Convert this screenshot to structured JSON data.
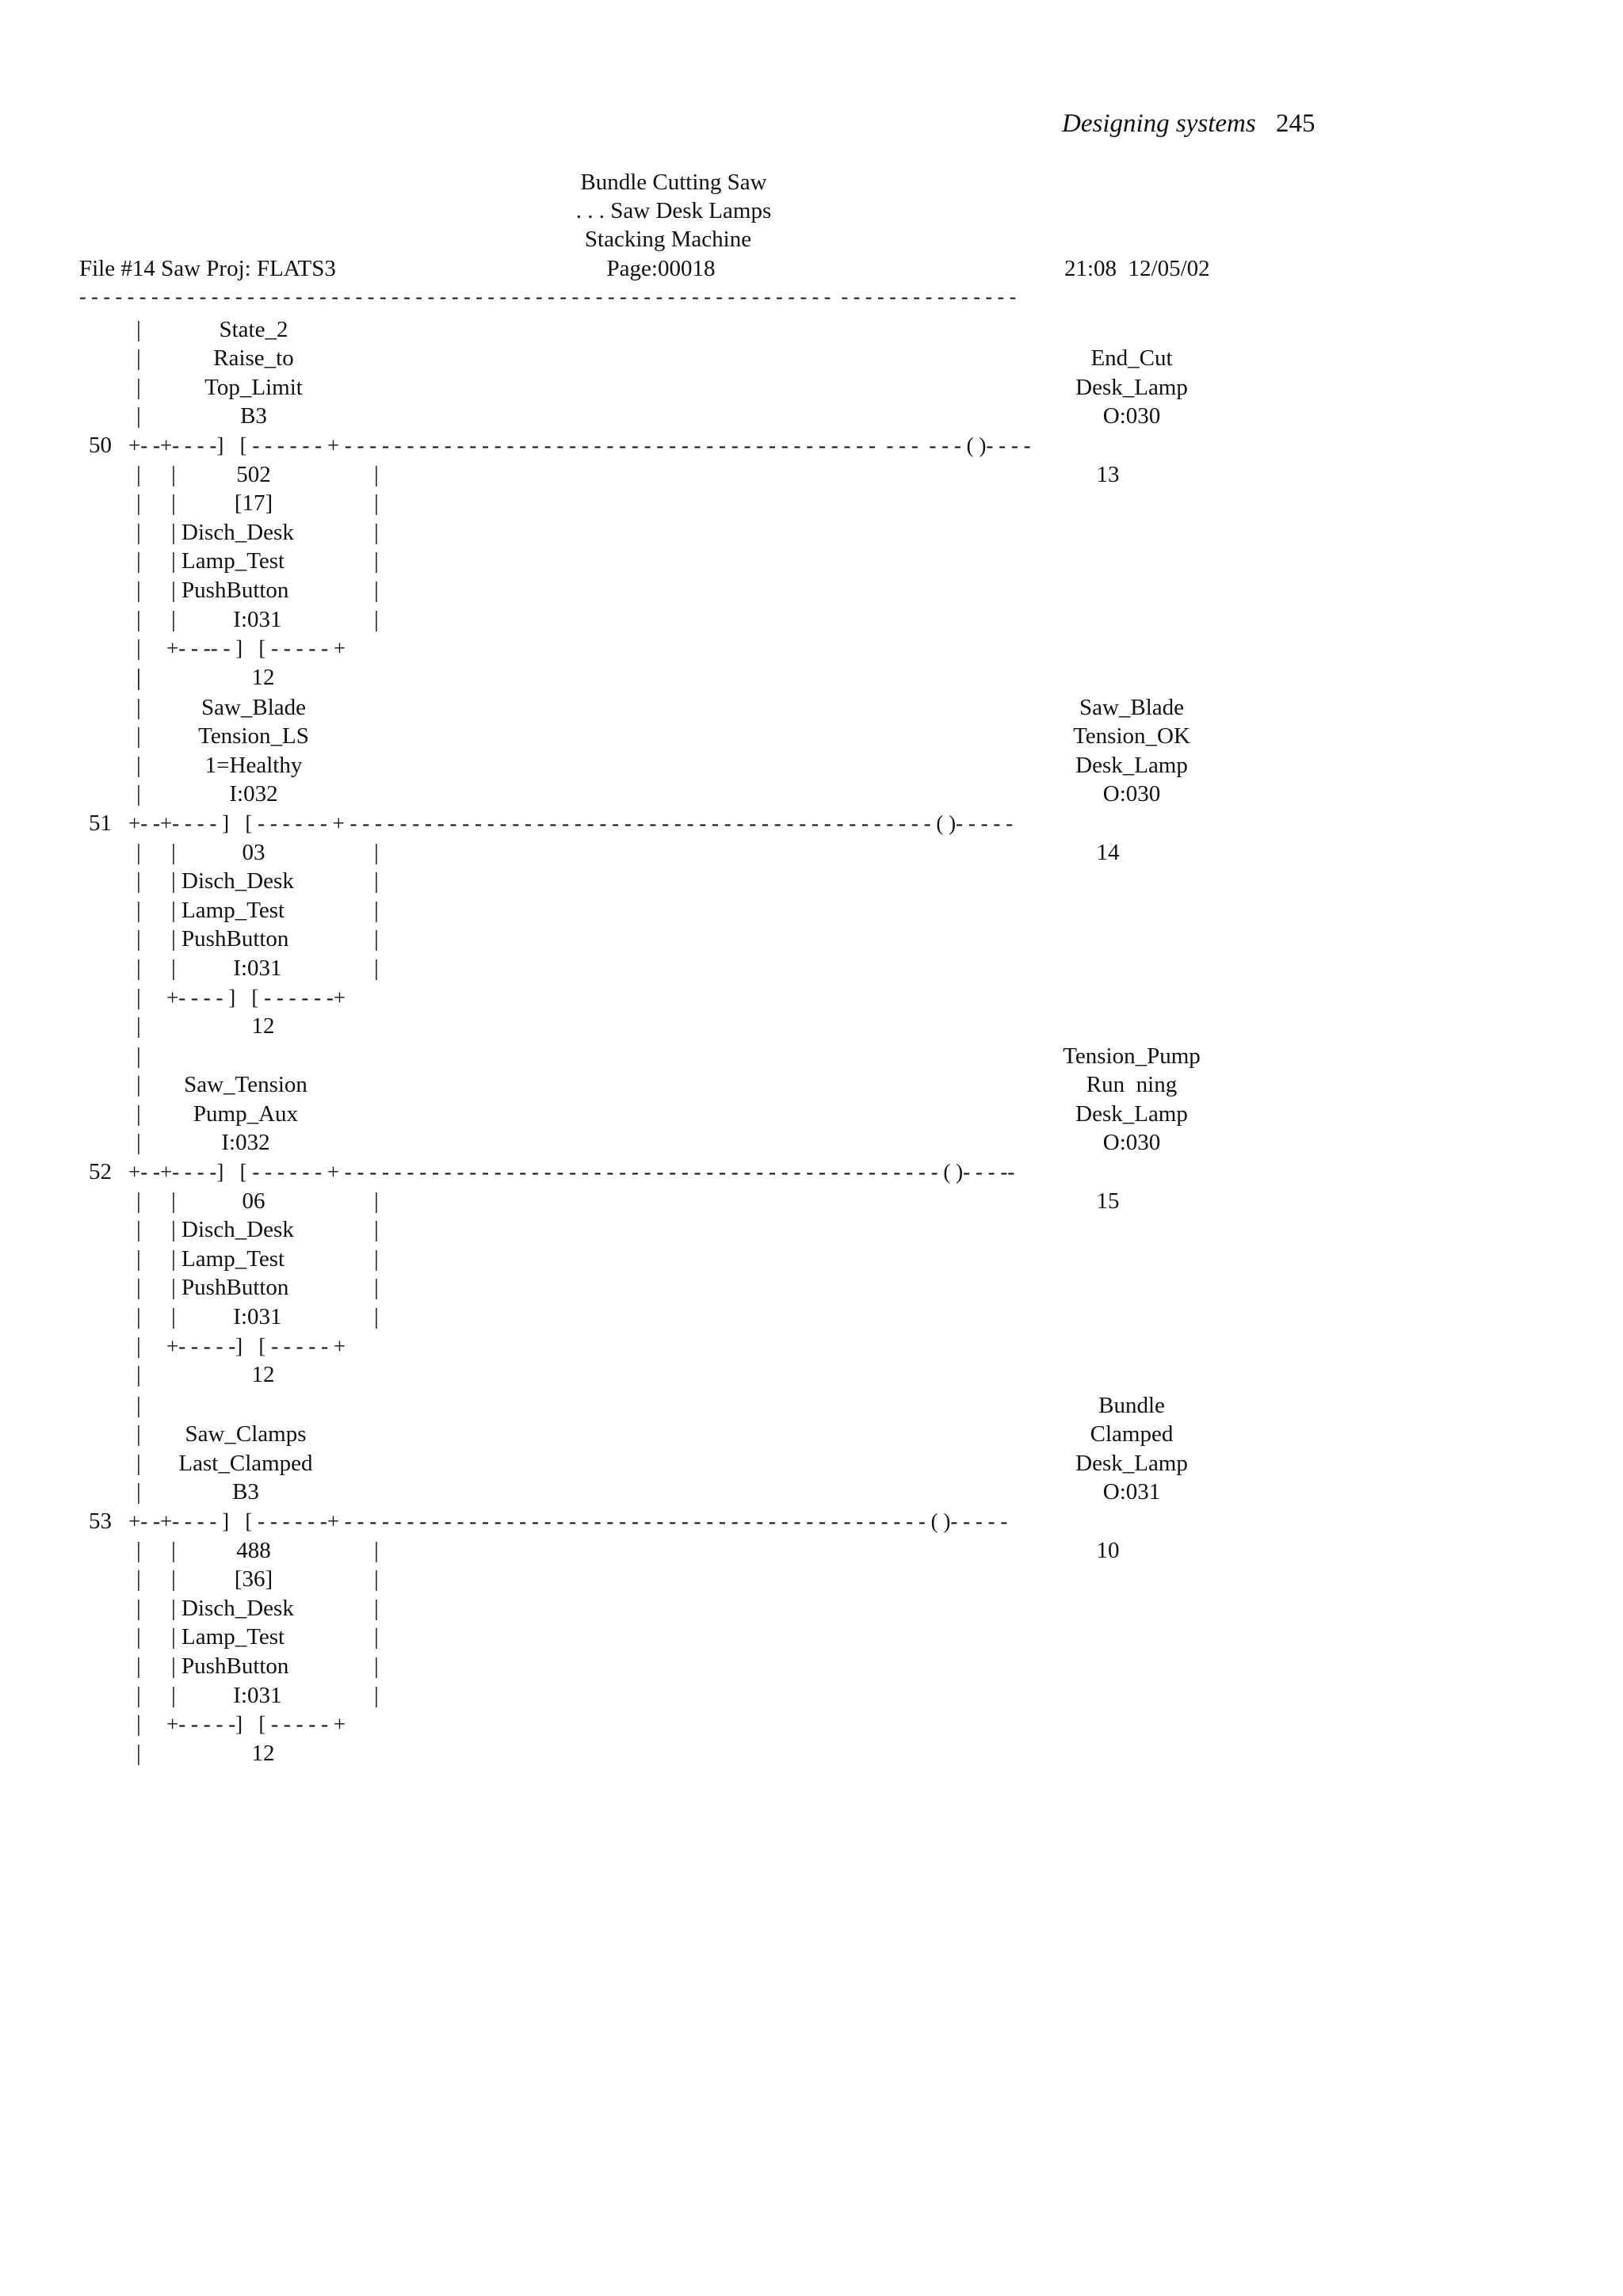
{
  "running_header": {
    "title": "Designing systems",
    "page_number": "245"
  },
  "listing_header": {
    "line1": "Bundle Cutting Saw",
    "line2": ". . . Saw Desk Lamps",
    "line3": "Stacking Machine",
    "file_info": "File #14 Saw Proj: FLATS3",
    "page": "Page:00018",
    "timestamp": "21:08  12/05/02",
    "separator": "- - - - - - - - - - - - - - - - - - - - - - - - - - - - - - - - - - - - - - - - - - - - - - - - - - - - - - - - - - - - - - -  - - - - - - - - - - - - - - -"
  },
  "rungs": [
    {
      "number": "50",
      "line": "+- -+- - - -]   [ - - - - - - + - - - - - - - - - - - - - - - - - - - - - - - - - - - - - - - - - - - - - - - - - - -  - - -  - - - ( )- - - -",
      "contact1_labels": [
        "State_2",
        "Raise_to",
        "Top_Limit",
        "B3"
      ],
      "contact1_bits": [
        "502",
        "[17]"
      ],
      "branch_labels": [
        "| Disch_Desk",
        "| Lamp_Test",
        "| PushButton",
        "|          I:031"
      ],
      "branch_line": "+- - -- - ]   [ - - - - - +",
      "branch_bit": "12",
      "coil_labels": [
        "End_Cut",
        "Desk_Lamp",
        "O:030"
      ],
      "coil_bit": "13"
    },
    {
      "number": "51",
      "line": "+- -+- - - - ]   [ - - - - - - + - - - - - - - - - - - - - - - - - - - - - - - - - - - - - - - - - - - - - - - - - - - - - - - ( )- - - - -",
      "contact1_labels": [
        "Saw_Blade",
        "Tension_LS",
        "1=Healthy",
        "I:032"
      ],
      "contact1_bits": [
        "03"
      ],
      "branch_labels": [
        "| Disch_Desk",
        "| Lamp_Test",
        "| PushButton",
        "|          I:031"
      ],
      "branch_line": "+- - - - ]   [ - - - - - -+",
      "branch_bit": "12",
      "coil_labels": [
        "Saw_Blade",
        "Tension_OK",
        "Desk_Lamp",
        "O:030"
      ],
      "coil_bit": "14"
    },
    {
      "number": "52",
      "line": "+- -+- - - -]   [ - - - - - - + - - - - - - - - - - - - - - - - - - - - - - - - - - - - - - - - - - - - - - - - - - - - - - - - ( )- - - --",
      "contact1_labels": [
        "Saw_Tension",
        "Pump_Aux",
        "I:032"
      ],
      "contact1_bits": [
        "06"
      ],
      "branch_labels": [
        "| Disch_Desk",
        "| Lamp_Test",
        "| PushButton",
        "|          I:031"
      ],
      "branch_line": "+- - - - -]   [ - - - - - +",
      "branch_bit": "12",
      "coil_labels": [
        "Tension_Pump",
        "Run  ning",
        "Desk_Lamp",
        "O:030"
      ],
      "coil_bit": "15"
    },
    {
      "number": "53",
      "line": "+- -+- - - - ]   [ - - - - - -+ - - - - - - - - - - - - - - - - - - - - - - - - - - - - - - - - - - - - - - - - - - - - - - - ( )- - - - -",
      "contact1_labels": [
        "Saw_Clamps",
        "Last_Clamped",
        "B3"
      ],
      "contact1_bits": [
        "488",
        "[36]"
      ],
      "branch_labels": [
        "| Disch_Desk",
        "| Lamp_Test",
        "| PushButton",
        "|          I:031"
      ],
      "branch_line": "+- - - - -]   [ - - - - - +",
      "branch_bit": "12",
      "coil_labels": [
        "Bundle",
        "Clamped",
        "Desk_Lamp",
        "O:031"
      ],
      "coil_bit": "10"
    }
  ]
}
